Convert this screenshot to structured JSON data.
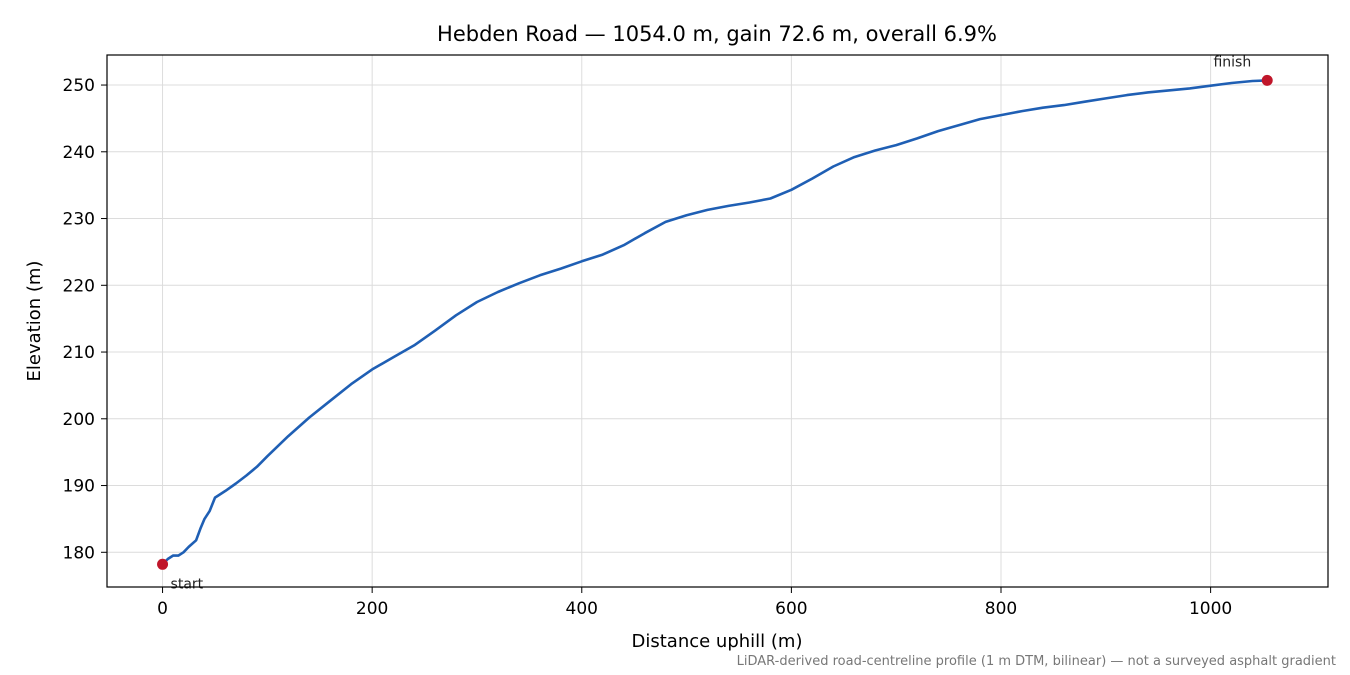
{
  "chart_data": {
    "type": "line",
    "title": "Hebden Road — 1054.0 m, gain 72.6 m, overall 6.9%",
    "xlabel": "Distance uphill (m)",
    "ylabel": "Elevation (m)",
    "xlim": [
      -53,
      1112
    ],
    "ylim": [
      174.8,
      254.5
    ],
    "xticks": [
      0,
      200,
      400,
      600,
      800,
      1000
    ],
    "yticks": [
      180,
      190,
      200,
      210,
      220,
      230,
      240,
      250
    ],
    "grid": true,
    "series": [
      {
        "color": "#1f5fb4",
        "x": [
          0,
          5,
          10,
          15,
          20,
          25,
          32,
          36,
          40,
          45,
          50,
          53,
          60,
          70,
          80,
          90,
          100,
          120,
          140,
          160,
          180,
          200,
          220,
          240,
          260,
          280,
          300,
          320,
          340,
          360,
          380,
          400,
          420,
          440,
          460,
          480,
          500,
          520,
          540,
          560,
          580,
          600,
          620,
          640,
          660,
          680,
          700,
          720,
          740,
          760,
          780,
          800,
          820,
          840,
          860,
          880,
          900,
          920,
          940,
          960,
          980,
          1000,
          1020,
          1040,
          1054
        ],
        "y": [
          178.2,
          179.0,
          179.5,
          179.5,
          180.0,
          180.8,
          181.8,
          183.5,
          185.0,
          186.2,
          188.2,
          188.5,
          189.2,
          190.3,
          191.5,
          192.8,
          194.4,
          197.4,
          200.2,
          202.7,
          205.2,
          207.4,
          209.2,
          211.0,
          213.2,
          215.5,
          217.5,
          219.0,
          220.3,
          221.5,
          222.5,
          223.6,
          224.6,
          226.0,
          227.8,
          229.5,
          230.5,
          231.3,
          231.9,
          232.4,
          233.0,
          234.3,
          236.0,
          237.8,
          239.2,
          240.2,
          241.0,
          242.0,
          243.1,
          244.0,
          244.9,
          245.5,
          246.1,
          246.6,
          247.0,
          247.5,
          248.0,
          248.5,
          248.9,
          249.2,
          249.5,
          249.9,
          250.3,
          250.6,
          250.7
        ]
      }
    ],
    "markers": [
      {
        "x": 0,
        "y": 178.2,
        "label": "start",
        "color": "#c0162a"
      },
      {
        "x": 1054,
        "y": 250.7,
        "label": "finish",
        "color": "#c0162a"
      }
    ],
    "footnote": "LiDAR-derived road-centreline profile (1 m DTM, bilinear) — not a surveyed asphalt gradient"
  }
}
